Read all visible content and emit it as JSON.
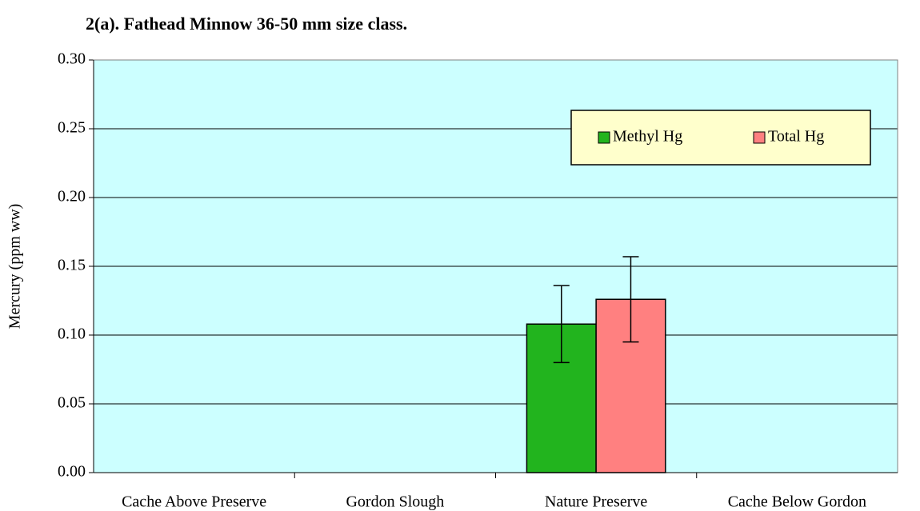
{
  "chart_data": {
    "type": "bar",
    "title": "2(a).  Fathead Minnow 36-50 mm size class.",
    "y_label": "Mercury (ppm ww)",
    "categories": [
      "Cache Above Preserve",
      "Gordon Slough",
      "Nature Preserve",
      "Cache Below Gordon"
    ],
    "series": [
      {
        "name": "Methyl Hg",
        "color": "#22b41e",
        "values": [
          null,
          null,
          0.108,
          null
        ],
        "errors": [
          null,
          null,
          0.028,
          null
        ]
      },
      {
        "name": "Total Hg",
        "color": "#ff8080",
        "values": [
          null,
          null,
          0.126,
          null
        ],
        "errors": [
          null,
          null,
          0.031,
          null
        ]
      }
    ],
    "ylim": [
      0,
      0.3
    ],
    "yticks": [
      {
        "value": 0,
        "label": "0.00"
      },
      {
        "value": 0.05,
        "label": "0.05"
      },
      {
        "value": 0.1,
        "label": "0.10"
      },
      {
        "value": 0.15,
        "label": "0.15"
      },
      {
        "value": 0.2,
        "label": "0.20"
      },
      {
        "value": 0.25,
        "label": "0.25"
      },
      {
        "value": 0.3,
        "label": "0.30"
      }
    ],
    "grid": true,
    "legend": "upper right"
  }
}
